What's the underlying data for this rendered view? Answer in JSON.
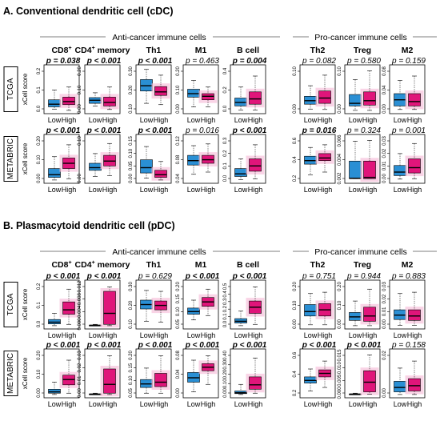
{
  "colors": {
    "low": "#2a8fd4",
    "high": "#e0157a",
    "highGlow": "#f7c2dc",
    "line": "#000000"
  },
  "sections": [
    {
      "title": "A. Conventional dendritic cell (cDC)",
      "group_left": "Anti-cancer immune cells",
      "group_right": "Pro-cancer immune cells",
      "cohorts": [
        "TCGA",
        "METABRIC"
      ],
      "yaxis_label": "xCell score",
      "panels": [
        {
          "cell": "CD8",
          "sup": "+"
        },
        {
          "cell": "CD4",
          "sup": "+",
          "suffix": " memory"
        },
        {
          "cell": "Th1"
        },
        {
          "cell": "M1"
        },
        {
          "cell": "B cell"
        },
        {
          "cell": "Th2"
        },
        {
          "cell": "Treg"
        },
        {
          "cell": "M2"
        }
      ],
      "rows": [
        {
          "cohort": "TCGA",
          "pvalues": [
            "p = 0.038",
            "p < 0.001",
            "p < 0.001",
            "p = 0.463",
            "p = 0.004",
            "p = 0.082",
            "p = 0.580",
            "p = 0.159"
          ],
          "bold": [
            true,
            true,
            true,
            false,
            true,
            false,
            false,
            false
          ],
          "yticks": [
            [
              "0.0",
              "0.1",
              "0.2"
            ],
            [
              "0.00",
              "0.10",
              "0.20"
            ],
            [
              "0.10",
              "0.20",
              "0.30"
            ],
            [
              "0.00",
              "0.10",
              "0.20"
            ],
            [
              "0.0",
              "0.2",
              "0.4"
            ],
            [
              "0.00",
              "0.10"
            ],
            [
              "0.00",
              "0.10"
            ],
            [
              "0.00",
              "0.04",
              "0.08"
            ]
          ],
          "boxes": [
            [
              0.05,
              0.1,
              0.16,
              0.26,
              0.48
            ],
            [
              0.02,
              0.15,
              0.22,
              0.32,
              0.55
            ],
            [
              0.12,
              0.18,
              0.25,
              0.31,
              0.42
            ],
            [
              0.04,
              0.12,
              0.2,
              0.32,
              0.55
            ],
            [
              0.18,
              0.46,
              0.58,
              0.72,
              0.95
            ],
            [
              0.15,
              0.36,
              0.44,
              0.56,
              0.82
            ],
            [
              0.1,
              0.32,
              0.4,
              0.5,
              0.7
            ],
            [
              0.1,
              0.26,
              0.34,
              0.4,
              0.55
            ],
            [
              0.03,
              0.12,
              0.2,
              0.3,
              0.55
            ],
            [
              0.03,
              0.16,
              0.28,
              0.44,
              0.8
            ],
            [
              0.05,
              0.16,
              0.24,
              0.34,
              0.58
            ],
            [
              0.04,
              0.18,
              0.3,
              0.46,
              0.82
            ],
            [
              0.02,
              0.12,
              0.18,
              0.38,
              0.72
            ],
            [
              0.02,
              0.14,
              0.24,
              0.44,
              0.92
            ],
            [
              0.04,
              0.12,
              0.26,
              0.4,
              0.7
            ],
            [
              0.04,
              0.12,
              0.22,
              0.4,
              0.8
            ]
          ]
        },
        {
          "cohort": "METABRIC",
          "pvalues": [
            "p < 0.001",
            "p < 0.001",
            "p < 0.001",
            "p = 0.016",
            "p < 0.001",
            "p = 0.016",
            "p = 0.324",
            "p = 0.001"
          ],
          "bold": [
            true,
            true,
            true,
            false,
            true,
            true,
            false,
            false
          ],
          "yticks": [
            [
              "0.00",
              "0.10",
              "0.20"
            ],
            [
              "0.00",
              "0.10"
            ],
            [
              "0.00",
              "0.05",
              "0.10",
              "0.15"
            ],
            [
              "0.04",
              "0.08",
              "0.12"
            ],
            [
              "0.0",
              "0.1",
              "0.2",
              "0.3"
            ],
            [
              "0.2",
              "0.4",
              "0.6"
            ],
            [
              "0.002",
              "0.004",
              "0.006"
            ],
            [
              "0.00",
              "0.01",
              "0.02",
              "0.03"
            ]
          ],
          "boxes": [
            [
              0.02,
              0.08,
              0.14,
              0.28,
              0.55
            ],
            [
              0.05,
              0.28,
              0.4,
              0.52,
              0.82
            ],
            [
              0.1,
              0.24,
              0.3,
              0.4,
              0.62
            ],
            [
              0.12,
              0.34,
              0.45,
              0.58,
              0.85
            ],
            [
              0.06,
              0.18,
              0.3,
              0.48,
              0.78
            ],
            [
              0.02,
              0.08,
              0.14,
              0.24,
              0.44
            ],
            [
              0.15,
              0.36,
              0.46,
              0.58,
              0.8
            ],
            [
              0.2,
              0.4,
              0.48,
              0.58,
              0.84
            ],
            [
              0.03,
              0.1,
              0.16,
              0.28,
              0.5
            ],
            [
              0.05,
              0.22,
              0.34,
              0.5,
              0.82
            ],
            [
              0.14,
              0.38,
              0.46,
              0.56,
              0.76
            ],
            [
              0.2,
              0.46,
              0.52,
              0.62,
              0.82
            ],
            [
              0.05,
              0.05,
              0.06,
              0.45,
              0.9
            ],
            [
              0.05,
              0.05,
              0.08,
              0.45,
              0.92
            ],
            [
              0.04,
              0.12,
              0.2,
              0.35,
              0.62
            ],
            [
              0.05,
              0.18,
              0.3,
              0.5,
              0.85
            ]
          ]
        }
      ]
    },
    {
      "title": "B. Plasmacytoid dendritic cell (pDC)",
      "group_left": "Anti-cancer immune cells",
      "group_right": "Pro-cancer immune cells",
      "cohorts": [
        "TCGA",
        "METABRIC"
      ],
      "yaxis_label": "xCell score",
      "panels": [
        {
          "cell": "CD8",
          "sup": "+"
        },
        {
          "cell": "CD4",
          "sup": "+",
          "suffix": " memory"
        },
        {
          "cell": "Th1"
        },
        {
          "cell": "M1"
        },
        {
          "cell": "B cell"
        },
        {
          "cell": "Th2"
        },
        {
          "cell": "Treg"
        },
        {
          "cell": "M2"
        }
      ],
      "rows": [
        {
          "cohort": "TCGA",
          "pvalues": [
            "p < 0.001",
            "p < 0.001",
            "p = 0.629",
            "p < 0.001",
            "p < 0.001",
            "p = 0.751",
            "p = 0.944",
            "p = 0.883"
          ],
          "bold": [
            true,
            true,
            false,
            true,
            true,
            false,
            false,
            false
          ],
          "yticks": [
            [
              "0.0",
              "0.1",
              "0.2"
            ],
            [
              "0.000",
              "0.004",
              "0.008",
              "0.012"
            ],
            [
              "0.10",
              "0.20",
              "0.30"
            ],
            [
              "0.05",
              "0.10",
              "0.15",
              "0.20"
            ],
            [
              "0.0",
              "0.1",
              "0.2",
              "0.3",
              "0.4",
              "0.5"
            ],
            [
              "0.00",
              "0.10",
              "0.20"
            ],
            [
              "0.00",
              "0.10",
              "0.20"
            ],
            [
              "0.00",
              "0.01",
              "0.02",
              "0.03"
            ]
          ],
          "boxes": [
            [
              0.02,
              0.06,
              0.1,
              0.16,
              0.3
            ],
            [
              0.05,
              0.28,
              0.38,
              0.56,
              0.85
            ],
            [
              0.02,
              0.02,
              0.03,
              0.03,
              0.05
            ],
            [
              0.02,
              0.05,
              0.3,
              0.8,
              0.9
            ],
            [
              0.12,
              0.4,
              0.5,
              0.6,
              0.82
            ],
            [
              0.1,
              0.38,
              0.48,
              0.58,
              0.8
            ],
            [
              0.15,
              0.28,
              0.34,
              0.42,
              0.6
            ],
            [
              0.25,
              0.46,
              0.56,
              0.66,
              0.85
            ],
            [
              0.02,
              0.08,
              0.12,
              0.18,
              0.35
            ],
            [
              0.05,
              0.3,
              0.44,
              0.58,
              0.9
            ],
            [
              0.04,
              0.24,
              0.34,
              0.5,
              0.75
            ],
            [
              0.04,
              0.24,
              0.38,
              0.52,
              0.78
            ],
            [
              0.02,
              0.14,
              0.22,
              0.32,
              0.58
            ],
            [
              0.02,
              0.12,
              0.24,
              0.44,
              0.85
            ],
            [
              0.03,
              0.16,
              0.26,
              0.38,
              0.75
            ],
            [
              0.03,
              0.14,
              0.24,
              0.38,
              0.78
            ]
          ]
        },
        {
          "cohort": "METABRIC",
          "pvalues": [
            "p < 0.001",
            "p < 0.001",
            "p < 0.001",
            "p < 0.001",
            "p < 0.001",
            "p < 0.001",
            "p < 0.001",
            "p = 0.158"
          ],
          "bold": [
            true,
            true,
            true,
            true,
            true,
            true,
            true,
            false
          ],
          "yticks": [
            [
              "0.00",
              "0.10",
              "0.20"
            ],
            [
              "0.00",
              "0.01",
              "0.02",
              "0.03"
            ],
            [
              "0.05",
              "0.10",
              "0.15",
              "0.20"
            ],
            [
              "0.00",
              "0.04",
              "0.08"
            ],
            [
              "0.00",
              "0.10",
              "0.20",
              "0.30",
              "0.40"
            ],
            [
              "0.2",
              "0.4",
              "0.6"
            ],
            [
              "0.000",
              "0.005",
              "0.010",
              "0.015"
            ],
            [
              "0.00",
              "0.02"
            ]
          ],
          "boxes": [
            [
              0.02,
              0.05,
              0.08,
              0.14,
              0.3
            ],
            [
              0.05,
              0.24,
              0.36,
              0.46,
              0.8
            ],
            [
              0.02,
              0.02,
              0.03,
              0.03,
              0.05
            ],
            [
              0.02,
              0.05,
              0.25,
              0.6,
              0.9
            ],
            [
              0.05,
              0.18,
              0.26,
              0.36,
              0.62
            ],
            [
              0.05,
              0.2,
              0.3,
              0.5,
              0.9
            ],
            [
              0.08,
              0.3,
              0.4,
              0.52,
              0.8
            ],
            [
              0.25,
              0.56,
              0.64,
              0.72,
              0.9
            ],
            [
              0.02,
              0.04,
              0.06,
              0.1,
              0.25
            ],
            [
              0.05,
              0.14,
              0.24,
              0.42,
              0.85
            ],
            [
              0.1,
              0.28,
              0.34,
              0.42,
              0.6
            ],
            [
              0.18,
              0.42,
              0.5,
              0.58,
              0.78
            ],
            [
              0.02,
              0.02,
              0.03,
              0.03,
              0.05
            ],
            [
              0.03,
              0.08,
              0.3,
              0.56,
              0.92
            ],
            [
              0.02,
              0.08,
              0.18,
              0.32,
              0.62
            ],
            [
              0.02,
              0.1,
              0.22,
              0.38,
              0.78
            ]
          ]
        }
      ]
    }
  ],
  "chart_data": {
    "type": "box",
    "categories": [
      "Low",
      "High"
    ],
    "note_values": "Each box: [whisker_min, q1, median, q3, whisker_max] on a 0-1 normalized scale within each panel's own y-axis range",
    "panels": [
      "CD8+",
      "CD4+ memory",
      "Th1",
      "M1",
      "B cell",
      "Th2",
      "Treg",
      "M2"
    ]
  }
}
